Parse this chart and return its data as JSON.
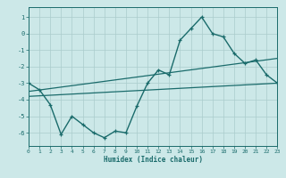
{
  "xlabel": "Humidex (Indice chaleur)",
  "bg_color": "#cce8e8",
  "line_color": "#1a6b6b",
  "grid_color": "#aacccc",
  "xlim": [
    0,
    23
  ],
  "ylim": [
    -6.8,
    1.6
  ],
  "yticks": [
    1,
    0,
    -1,
    -2,
    -3,
    -4,
    -5,
    -6
  ],
  "xticks": [
    0,
    1,
    2,
    3,
    4,
    5,
    6,
    7,
    8,
    9,
    10,
    11,
    12,
    13,
    14,
    15,
    16,
    17,
    18,
    19,
    20,
    21,
    22,
    23
  ],
  "curve_x": [
    0,
    1,
    2,
    3,
    4,
    5,
    6,
    7,
    8,
    9,
    10,
    11,
    12,
    13,
    14,
    15,
    16,
    17,
    18,
    19,
    20,
    21,
    22,
    23
  ],
  "curve_y": [
    -3.0,
    -3.4,
    -4.3,
    -6.1,
    -5.0,
    -5.5,
    -6.0,
    -6.3,
    -5.9,
    -6.0,
    -4.4,
    -3.0,
    -2.2,
    -2.5,
    -0.4,
    0.3,
    1.0,
    0.0,
    -0.2,
    -1.2,
    -1.8,
    -1.6,
    -2.5,
    -3.0
  ],
  "trend1_x": [
    0,
    23
  ],
  "trend1_y": [
    -3.0,
    -3.0
  ],
  "trend2_x": [
    0,
    23
  ],
  "trend2_y": [
    -3.5,
    -1.5
  ],
  "trend3_x": [
    0,
    23
  ],
  "trend3_y": [
    -3.8,
    -3.0
  ]
}
